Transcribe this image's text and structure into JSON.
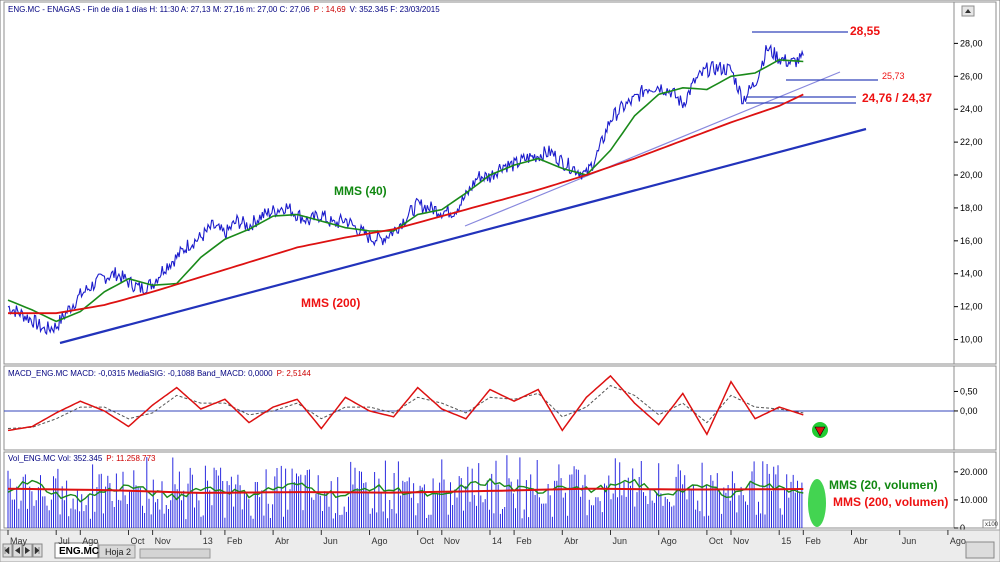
{
  "colors": {
    "price": "#1c1ccc",
    "mms40": "#1a8a1a",
    "mms200": "#dd1111",
    "trend": "#2233bb",
    "trend_light": "#8888dd",
    "level": "#3344bb",
    "macd": "#dd1111",
    "macd_signal": "#555555",
    "volume": "#2a2ae0",
    "highlight": "#22cc33",
    "annot_red": "#ee1111",
    "annot_green": "#118811"
  },
  "header": {
    "text": "ENG.MC - ENAGAS - Fin de día 1 días  H: 11:30  A: 27,13  M: 27,16  m: 27,00  C: 27,06",
    "p_text": "P : 14,69",
    "tail_text": "V: 352.345  F: 23/03/2015"
  },
  "macd_header": {
    "text": "MACD_ENG.MC  MACD: -0,0315  MediaSIG: -0,1088  Band_MACD: 0,0000",
    "p_text": "P: 2,5144"
  },
  "vol_header": {
    "text": "Vol_ENG.MC  Vol: 352.345",
    "p_text": "P: 11.258.773"
  },
  "tabs": {
    "sheet1": "ENG.MC",
    "sheet2": "Hoja 2"
  },
  "annotations": {
    "resistance": "28,55",
    "level_mid": "25,73",
    "level_low": "24,76 / 24,37",
    "mms40": "MMS (40)",
    "mms200": "MMS (200)",
    "vol20": "MMS (20, volumen)",
    "vol200": "MMS (200, volumen)",
    "scale_badge": "x100"
  },
  "chart_data": [
    {
      "type": "line",
      "panel": "price",
      "ylim": [
        9.0,
        29.3
      ],
      "yticks": [
        "28,00",
        "26,00",
        "24,00",
        "22,00",
        "20,00",
        "18,00",
        "16,00",
        "14,00",
        "12,00",
        "10,00"
      ],
      "ytick_values": [
        28,
        26,
        24,
        22,
        20,
        18,
        16,
        14,
        12,
        10
      ],
      "x_ticks": [
        "May",
        "Jul",
        "Ago",
        "Oct",
        "Nov",
        "13",
        "Feb",
        "Abr",
        "Jun",
        "Ago",
        "Oct",
        "Nov",
        "14",
        "Feb",
        "Abr",
        "Jun",
        "Ago",
        "Oct",
        "Nov",
        "15",
        "Feb",
        "Abr",
        "Jun",
        "Ago"
      ],
      "x_tick_months": [
        0,
        2,
        3,
        5,
        6,
        8,
        9,
        11,
        13,
        15,
        17,
        18,
        20,
        21,
        23,
        25,
        27,
        29,
        30,
        32,
        33,
        35,
        37,
        39
      ],
      "series": [
        {
          "kind": "price",
          "x": [
            0,
            0.5,
            1.0,
            1.5,
            2.0,
            2.5,
            3.0,
            3.5,
            4.0,
            4.5,
            5.0,
            5.5,
            6.0,
            6.5,
            7.0,
            7.5,
            8.0,
            8.5,
            9.0,
            9.5,
            10.0,
            10.5,
            11.0,
            11.5,
            12.0,
            12.5,
            13.0,
            13.5,
            14.0,
            14.5,
            15.0,
            15.5,
            16.0,
            16.5,
            17.0,
            17.5,
            18.0,
            18.5,
            19.0,
            19.5,
            20.0,
            20.5,
            21.0,
            21.5,
            22.0,
            22.5,
            23.0,
            23.5,
            24.0,
            24.5,
            25.0,
            25.5,
            26.0,
            26.5,
            27.0,
            27.5,
            28.0,
            28.5,
            29.0,
            29.5,
            30.0,
            30.5,
            31.0,
            31.5,
            32.0,
            32.5,
            33.0
          ],
          "values": [
            12.0,
            11.6,
            11.2,
            10.6,
            10.8,
            11.8,
            12.7,
            13.3,
            13.8,
            14.0,
            13.5,
            13.1,
            13.4,
            14.4,
            15.0,
            15.8,
            16.2,
            16.9,
            16.4,
            17.2,
            16.9,
            17.5,
            17.8,
            18.1,
            17.6,
            17.2,
            17.6,
            17.0,
            17.3,
            16.7,
            16.2,
            16.1,
            16.6,
            17.4,
            18.2,
            18.0,
            17.8,
            17.8,
            18.7,
            19.9,
            19.9,
            20.6,
            20.6,
            21.0,
            21.2,
            21.4,
            20.8,
            20.4,
            20.0,
            21.4,
            23.4,
            24.1,
            24.6,
            25.3,
            25.4,
            25.1,
            24.3,
            25.7,
            26.4,
            26.5,
            26.4,
            24.6,
            25.6,
            27.7,
            27.1,
            26.8,
            27.1
          ]
        },
        {
          "name": "MMS (40)",
          "kind": "mms40",
          "x": [
            0,
            1,
            2,
            3,
            4,
            5,
            6,
            7,
            8,
            9,
            10,
            11,
            12,
            13,
            14,
            15,
            16,
            17,
            18,
            19,
            20,
            21,
            22,
            23,
            24,
            25,
            26,
            27,
            28,
            29,
            30,
            31,
            32,
            33
          ],
          "values": [
            12.4,
            11.8,
            11.1,
            11.7,
            12.9,
            13.7,
            13.3,
            13.4,
            15.0,
            16.1,
            16.7,
            17.5,
            17.6,
            17.2,
            16.8,
            16.6,
            16.6,
            17.6,
            17.9,
            18.9,
            20.0,
            20.6,
            21.0,
            20.4,
            20.0,
            21.5,
            23.6,
            24.9,
            25.3,
            25.2,
            26.0,
            26.2,
            27.0,
            26.9
          ]
        },
        {
          "name": "MMS (200)",
          "kind": "mms200",
          "x": [
            0,
            2,
            4,
            6,
            8,
            10,
            12,
            14,
            16,
            18,
            20,
            22,
            24,
            26,
            28,
            30,
            32,
            33
          ],
          "values": [
            11.6,
            11.6,
            12.1,
            12.9,
            13.8,
            14.7,
            15.6,
            16.2,
            16.7,
            17.5,
            18.3,
            19.1,
            20.0,
            21.0,
            22.1,
            23.2,
            24.2,
            24.9
          ]
        }
      ]
    },
    {
      "type": "line",
      "panel": "macd",
      "ylim": [
        -0.95,
        1.05
      ],
      "yticks": [
        "0,50",
        "0,00"
      ],
      "ytick_values": [
        0.5,
        0.0
      ],
      "series": [
        {
          "kind": "macd",
          "x": [
            0,
            1,
            2,
            3,
            4,
            5,
            6,
            7,
            8,
            9,
            10,
            11,
            12,
            13,
            14,
            15,
            16,
            17,
            18,
            19,
            20,
            21,
            22,
            23,
            24,
            25,
            26,
            27,
            28,
            29,
            30,
            31,
            32,
            33
          ],
          "values": [
            -0.5,
            -0.4,
            -0.05,
            0.25,
            0.0,
            -0.4,
            0.15,
            0.6,
            0.05,
            0.3,
            -0.3,
            0.1,
            0.3,
            -0.45,
            0.35,
            0.0,
            -0.15,
            0.6,
            0.05,
            -0.2,
            0.55,
            0.25,
            0.55,
            -0.5,
            0.35,
            0.9,
            0.2,
            -0.35,
            0.45,
            -0.6,
            0.75,
            -0.2,
            0.1,
            -0.1
          ]
        },
        {
          "kind": "macd_signal",
          "x": [
            0,
            1,
            2,
            3,
            4,
            5,
            6,
            7,
            8,
            9,
            10,
            11,
            12,
            13,
            14,
            15,
            16,
            17,
            18,
            19,
            20,
            21,
            22,
            23,
            24,
            25,
            26,
            27,
            28,
            29,
            30,
            31,
            32,
            33
          ],
          "values": [
            -0.45,
            -0.42,
            -0.2,
            0.1,
            0.1,
            -0.2,
            -0.05,
            0.4,
            0.2,
            0.2,
            -0.1,
            0.0,
            0.2,
            -0.2,
            0.1,
            0.1,
            -0.05,
            0.35,
            0.2,
            -0.05,
            0.35,
            0.3,
            0.45,
            -0.15,
            0.1,
            0.65,
            0.4,
            -0.1,
            0.2,
            -0.3,
            0.4,
            0.1,
            0.05,
            -0.05
          ]
        }
      ]
    },
    {
      "type": "bar",
      "panel": "volume",
      "ylim": [
        0,
        26000
      ],
      "yticks": [
        "20.000",
        "10.000",
        "0"
      ],
      "ytick_values": [
        20000,
        10000,
        0
      ],
      "series": [
        {
          "name": "MMS (20, volumen)",
          "kind": "vol20",
          "x": [
            0,
            1,
            2,
            3,
            4,
            5,
            6,
            7,
            8,
            9,
            10,
            11,
            12,
            13,
            14,
            15,
            16,
            17,
            18,
            19,
            20,
            21,
            22,
            23,
            24,
            25,
            26,
            27,
            28,
            29,
            30,
            31,
            32,
            33
          ],
          "values": [
            14000,
            16500,
            12000,
            10500,
            13000,
            15000,
            12500,
            11000,
            14500,
            13500,
            12000,
            14000,
            15500,
            13000,
            11500,
            14500,
            13500,
            12500,
            11000,
            15000,
            16500,
            14000,
            13000,
            15500,
            13500,
            14500,
            16500,
            12000,
            13500,
            15000,
            11500,
            16500,
            14000,
            13500
          ]
        },
        {
          "name": "MMS (200, volumen)",
          "kind": "vol200",
          "x": [
            0,
            4,
            8,
            12,
            16,
            20,
            24,
            28,
            32,
            33
          ],
          "values": [
            14000,
            13500,
            12500,
            12800,
            12600,
            13200,
            14000,
            13700,
            13800,
            13900
          ]
        }
      ]
    }
  ]
}
